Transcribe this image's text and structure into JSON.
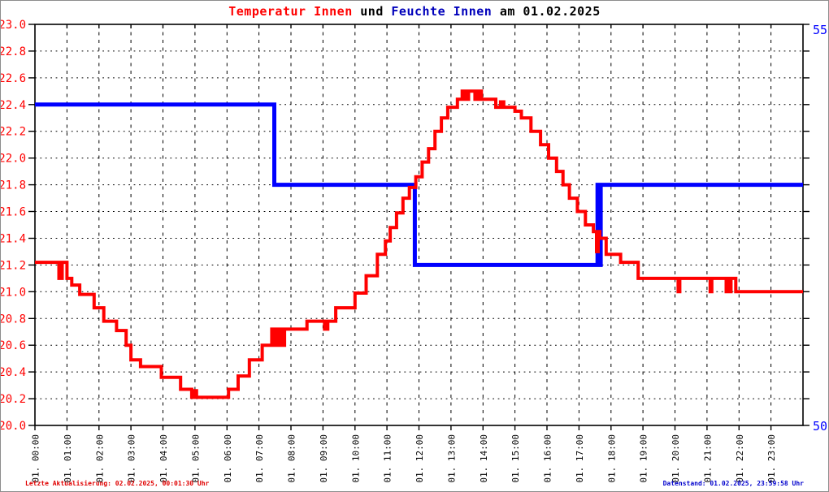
{
  "title": {
    "temp_label": "Temperatur Innen",
    "connector": " und ",
    "humidity_label": "Feuchte Innen",
    "suffix": " am 01.02.2025"
  },
  "footer": {
    "left": "Letzte Aktualisierung: 02.02.2025, 00:01:30 Uhr",
    "right": "Datenstand: 01.02.2025, 23:59:58 Uhr"
  },
  "colors": {
    "temperature_red": "#ff0000",
    "humidity_blue": "#0000ff",
    "title_blue": "#0000bb",
    "axis_black": "#000000",
    "left_tick_label_red": "#ff0000",
    "right_tick_label_blue": "#0000ff"
  },
  "chart_data": {
    "type": "line",
    "title": "Temperatur Innen und Feuchte Innen am 01.02.2025",
    "grid": true,
    "x_axis": {
      "range_hours": [
        0,
        24
      ],
      "tick_labels": [
        "01. 00:00",
        "01. 01:00",
        "01. 02:00",
        "01. 03:00",
        "01. 04:00",
        "01. 05:00",
        "01. 06:00",
        "01. 07:00",
        "01. 08:00",
        "01. 09:00",
        "01. 10:00",
        "01. 11:00",
        "01. 12:00",
        "01. 13:00",
        "01. 14:00",
        "01. 15:00",
        "01. 16:00",
        "01. 17:00",
        "01. 18:00",
        "01. 19:00",
        "01. 20:00",
        "01. 21:00",
        "01. 22:00",
        "01. 23:00"
      ]
    },
    "y_axis_left": {
      "min": 20.0,
      "max": 23.0,
      "step": 0.2,
      "tick_labels": [
        "23.0",
        "22.8",
        "22.6",
        "22.4",
        "22.2",
        "22.0",
        "21.8",
        "21.6",
        "21.4",
        "21.2",
        "21.0",
        "20.8",
        "20.6",
        "20.4",
        "20.2",
        "20.0"
      ]
    },
    "y_axis_right": {
      "min": 50,
      "max": 55,
      "tick_labels": [
        "55",
        "50"
      ]
    },
    "series": [
      {
        "name": "Feuchte Innen",
        "axis": "right",
        "color": "#0000ff",
        "width": 5,
        "step_points": [
          [
            0,
            54
          ],
          [
            7.48,
            53
          ],
          [
            11.87,
            52
          ],
          [
            17.58,
            53
          ],
          [
            17.62,
            52
          ],
          [
            17.68,
            53
          ],
          [
            24,
            53
          ]
        ]
      },
      {
        "name": "Temperatur Innen",
        "axis": "left",
        "color": "#ff0000",
        "width": 4,
        "step_points": [
          [
            0.0,
            21.22
          ],
          [
            0.75,
            21.1
          ],
          [
            0.85,
            21.22
          ],
          [
            1.0,
            21.1
          ],
          [
            1.15,
            21.05
          ],
          [
            1.4,
            20.98
          ],
          [
            1.85,
            20.88
          ],
          [
            2.15,
            20.78
          ],
          [
            2.55,
            20.71
          ],
          [
            2.85,
            20.6
          ],
          [
            3.0,
            20.49
          ],
          [
            3.3,
            20.44
          ],
          [
            3.95,
            20.36
          ],
          [
            4.55,
            20.27
          ],
          [
            4.9,
            20.21
          ],
          [
            5.0,
            20.26
          ],
          [
            5.05,
            20.21
          ],
          [
            6.05,
            20.27
          ],
          [
            6.35,
            20.37
          ],
          [
            6.7,
            20.49
          ],
          [
            7.1,
            20.6
          ],
          [
            7.4,
            20.72
          ],
          [
            7.5,
            20.6
          ],
          [
            7.6,
            20.72
          ],
          [
            7.7,
            20.6
          ],
          [
            7.8,
            20.72
          ],
          [
            8.5,
            20.78
          ],
          [
            9.05,
            20.72
          ],
          [
            9.15,
            20.78
          ],
          [
            9.4,
            20.88
          ],
          [
            10.0,
            20.99
          ],
          [
            10.35,
            21.12
          ],
          [
            10.7,
            21.28
          ],
          [
            10.95,
            21.38
          ],
          [
            11.1,
            21.48
          ],
          [
            11.3,
            21.59
          ],
          [
            11.5,
            21.7
          ],
          [
            11.7,
            21.78
          ],
          [
            11.9,
            21.86
          ],
          [
            12.1,
            21.97
          ],
          [
            12.3,
            22.07
          ],
          [
            12.5,
            22.2
          ],
          [
            12.7,
            22.3
          ],
          [
            12.9,
            22.38
          ],
          [
            13.2,
            22.44
          ],
          [
            13.35,
            22.5
          ],
          [
            13.45,
            22.44
          ],
          [
            13.55,
            22.5
          ],
          [
            13.75,
            22.44
          ],
          [
            13.85,
            22.5
          ],
          [
            13.95,
            22.44
          ],
          [
            14.4,
            22.38
          ],
          [
            14.55,
            22.42
          ],
          [
            14.65,
            22.38
          ],
          [
            15.0,
            22.35
          ],
          [
            15.2,
            22.3
          ],
          [
            15.5,
            22.2
          ],
          [
            15.8,
            22.1
          ],
          [
            16.05,
            22.0
          ],
          [
            16.3,
            21.9
          ],
          [
            16.5,
            21.8
          ],
          [
            16.7,
            21.7
          ],
          [
            16.95,
            21.6
          ],
          [
            17.2,
            21.5
          ],
          [
            17.45,
            21.45
          ],
          [
            17.55,
            21.3
          ],
          [
            17.6,
            21.45
          ],
          [
            17.65,
            21.4
          ],
          [
            17.85,
            21.28
          ],
          [
            18.3,
            21.22
          ],
          [
            18.85,
            21.1
          ],
          [
            20.1,
            21.0
          ],
          [
            20.15,
            21.1
          ],
          [
            21.1,
            21.0
          ],
          [
            21.15,
            21.1
          ],
          [
            21.6,
            21.0
          ],
          [
            21.65,
            21.1
          ],
          [
            21.7,
            21.0
          ],
          [
            21.75,
            21.1
          ],
          [
            21.9,
            21.0
          ],
          [
            24.0,
            21.0
          ]
        ]
      }
    ]
  }
}
